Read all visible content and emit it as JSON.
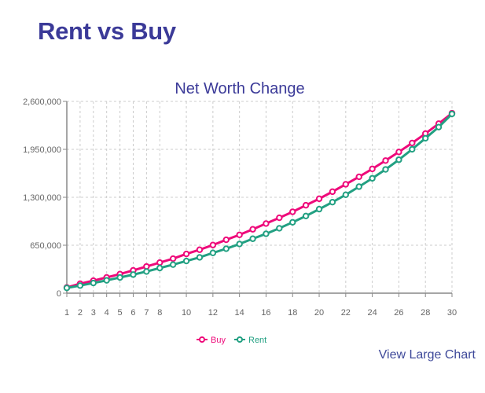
{
  "page": {
    "title": "Rent vs Buy",
    "link_label": "View Large Chart"
  },
  "colors": {
    "buy": "#ee0a7a",
    "rent": "#22a082",
    "title": "#3b3a98"
  },
  "chart_data": {
    "type": "line",
    "title": "Net Worth Change",
    "xlabel": "",
    "ylabel": "",
    "x": [
      1,
      2,
      3,
      4,
      5,
      6,
      7,
      8,
      9,
      10,
      11,
      12,
      13,
      14,
      15,
      16,
      17,
      18,
      19,
      20,
      21,
      22,
      23,
      24,
      25,
      26,
      27,
      28,
      29,
      30
    ],
    "x_tick_labels": [
      "1",
      "2",
      "3",
      "4",
      "5",
      "6",
      "7",
      "8",
      "10",
      "12",
      "14",
      "16",
      "18",
      "20",
      "22",
      "24",
      "26",
      "28",
      "30"
    ],
    "xlim": [
      1,
      30
    ],
    "y_ticks": [
      0,
      650000,
      1300000,
      1950000,
      2600000
    ],
    "y_tick_labels": [
      "0",
      "650,000",
      "1,300,000",
      "1,950,000",
      "2,600,000"
    ],
    "ylim": [
      0,
      2600000
    ],
    "grid": true,
    "legend_position": "bottom-center",
    "series": [
      {
        "name": "Buy",
        "values": [
          78000,
          128000,
          170000,
          213000,
          259000,
          309000,
          362000,
          415000,
          468000,
          532000,
          589000,
          653000,
          724000,
          791000,
          866000,
          944000,
          1022000,
          1103000,
          1192000,
          1280000,
          1376000,
          1476000,
          1578000,
          1685000,
          1798000,
          1915000,
          2036000,
          2164000,
          2298000,
          2440000
        ]
      },
      {
        "name": "Rent",
        "values": [
          71000,
          103000,
          138000,
          174000,
          213000,
          252000,
          294000,
          341000,
          387000,
          436000,
          486000,
          546000,
          603000,
          667000,
          738000,
          805000,
          880000,
          961000,
          1046000,
          1139000,
          1234000,
          1334000,
          1444000,
          1557000,
          1678000,
          1809000,
          1951000,
          2100000,
          2252000,
          2430000
        ]
      }
    ]
  }
}
